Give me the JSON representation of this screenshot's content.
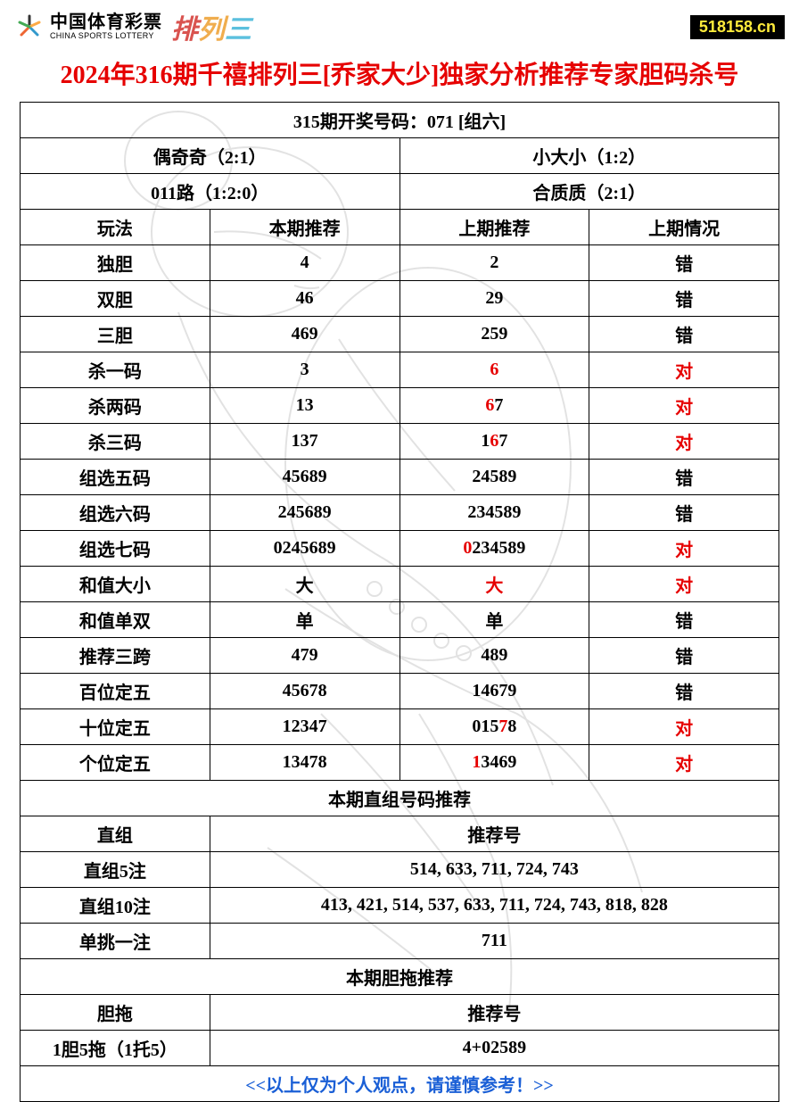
{
  "header": {
    "logo_cn": "中国体育彩票",
    "logo_en": "CHINA SPORTS LOTTERY",
    "brand_chars": [
      "排",
      "列",
      "三"
    ],
    "site_badge": "518158.cn"
  },
  "title": "2024年316期千禧排列三[乔家大少]独家分析推荐专家胆码杀号",
  "draw_header": "315期开奖号码：071 [组六]",
  "summary_row1": {
    "left": "偶奇奇（2:1）",
    "right": "小大小（1:2）"
  },
  "summary_row2": {
    "left": "011路（1:2:0）",
    "right": "合质质（2:1）"
  },
  "cols": {
    "c1": "玩法",
    "c2": "本期推荐",
    "c3": "上期推荐",
    "c4": "上期情况"
  },
  "rows": [
    {
      "name": "独胆",
      "cur": "4",
      "prev": [
        {
          "t": "2",
          "r": false
        }
      ],
      "res": "错",
      "res_red": false
    },
    {
      "name": "双胆",
      "cur": "46",
      "prev": [
        {
          "t": "29",
          "r": false
        }
      ],
      "res": "错",
      "res_red": false
    },
    {
      "name": "三胆",
      "cur": "469",
      "prev": [
        {
          "t": "259",
          "r": false
        }
      ],
      "res": "错",
      "res_red": false
    },
    {
      "name": "杀一码",
      "cur": "3",
      "prev": [
        {
          "t": "6",
          "r": true
        }
      ],
      "res": "对",
      "res_red": true
    },
    {
      "name": "杀两码",
      "cur": "13",
      "prev": [
        {
          "t": "6",
          "r": true
        },
        {
          "t": "7",
          "r": false
        }
      ],
      "res": "对",
      "res_red": true
    },
    {
      "name": "杀三码",
      "cur": "137",
      "prev": [
        {
          "t": "1",
          "r": false
        },
        {
          "t": "6",
          "r": true
        },
        {
          "t": "7",
          "r": false
        }
      ],
      "res": "对",
      "res_red": true
    },
    {
      "name": "组选五码",
      "cur": "45689",
      "prev": [
        {
          "t": "24589",
          "r": false
        }
      ],
      "res": "错",
      "res_red": false
    },
    {
      "name": "组选六码",
      "cur": "245689",
      "prev": [
        {
          "t": "234589",
          "r": false
        }
      ],
      "res": "错",
      "res_red": false
    },
    {
      "name": "组选七码",
      "cur": "0245689",
      "prev": [
        {
          "t": "0",
          "r": true
        },
        {
          "t": "234589",
          "r": false
        }
      ],
      "res": "对",
      "res_red": true
    },
    {
      "name": "和值大小",
      "cur": "大",
      "prev": [
        {
          "t": "大",
          "r": true
        }
      ],
      "res": "对",
      "res_red": true
    },
    {
      "name": "和值单双",
      "cur": "单",
      "prev": [
        {
          "t": "单",
          "r": false
        }
      ],
      "res": "错",
      "res_red": false
    },
    {
      "name": "推荐三跨",
      "cur": "479",
      "prev": [
        {
          "t": "489",
          "r": false
        }
      ],
      "res": "错",
      "res_red": false
    },
    {
      "name": "百位定五",
      "cur": "45678",
      "prev": [
        {
          "t": "14679",
          "r": false
        }
      ],
      "res": "错",
      "res_red": false
    },
    {
      "name": "十位定五",
      "cur": "12347",
      "prev": [
        {
          "t": "015",
          "r": false
        },
        {
          "t": "7",
          "r": true
        },
        {
          "t": "8",
          "r": false
        }
      ],
      "res": "对",
      "res_red": true
    },
    {
      "name": "个位定五",
      "cur": "13478",
      "prev": [
        {
          "t": "1",
          "r": true
        },
        {
          "t": "3469",
          "r": false
        }
      ],
      "res": "对",
      "res_red": true
    }
  ],
  "section2_header": "本期直组号码推荐",
  "zhizu_label_col": "直组",
  "zhizu_rec_col": "推荐号",
  "zhizu_rows": [
    {
      "label": "直组5注",
      "val": "514, 633, 711, 724, 743"
    },
    {
      "label": "直组10注",
      "val": "413, 421, 514, 537, 633, 711, 724, 743, 818, 828"
    },
    {
      "label": "单挑一注",
      "val": "711"
    }
  ],
  "section3_header": "本期胆拖推荐",
  "dantuo_label_col": "胆拖",
  "dantuo_rec_col": "推荐号",
  "dantuo_rows": [
    {
      "label": "1胆5拖（1托5）",
      "val": "4+02589"
    }
  ],
  "footer": "<<以上仅为个人观点，请谨慎参考！>>",
  "colors": {
    "title_red": "#e60000",
    "highlight_red": "#e60000",
    "footer_blue": "#1a5fd6",
    "badge_bg": "#000000",
    "badge_fg": "#ffeb3b",
    "border": "#000000"
  }
}
